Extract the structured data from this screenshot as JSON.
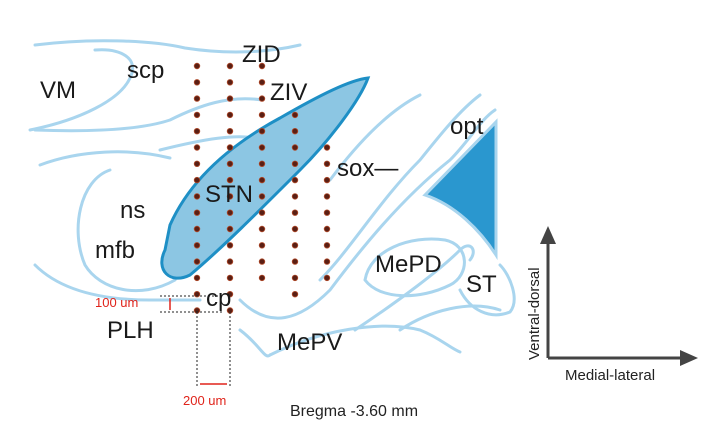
{
  "labels": {
    "vm": "VM",
    "scp": "scp",
    "zid": "ZID",
    "ziv": "ZIV",
    "opt": "opt",
    "sox": "sox—",
    "ns": "ns",
    "stn": "STN",
    "mfb": "mfb",
    "mepd": "MePD",
    "st": "ST",
    "cp": "cp",
    "plh": "PLH",
    "mepv": "MePV"
  },
  "scale": {
    "vertical": "100 um",
    "horizontal": "200 um"
  },
  "caption": "Bregma -3.60 mm",
  "axes": {
    "vertical": "Ventral-dorsal",
    "horizontal": "Medial-lateral"
  }
}
